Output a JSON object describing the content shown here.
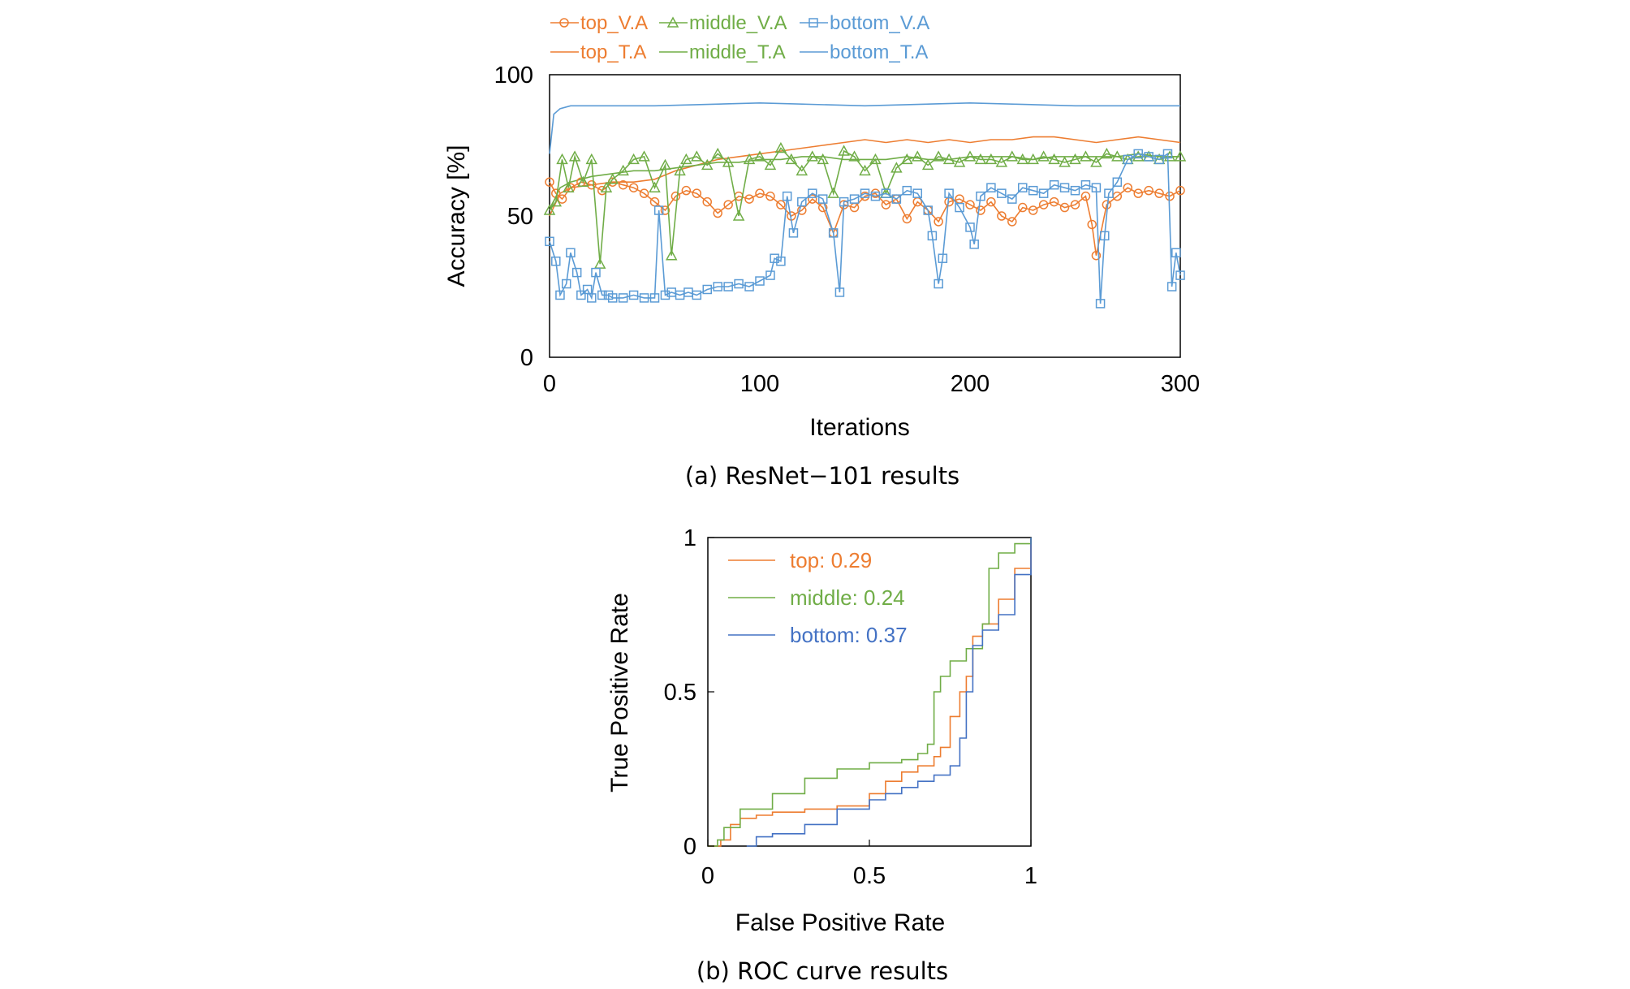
{
  "colors": {
    "top": "#ED7D31",
    "middle": "#70AD47",
    "bottom": "#5B9BD5",
    "bottom_roc": "#4472C4"
  },
  "captions": {
    "a": "(a)  ResNet−101  results",
    "b": "(b)  ROC  curve  results"
  },
  "chart_data": [
    {
      "type": "line",
      "xlabel": "Iterations",
      "ylabel": "Accuracy [%]",
      "xlim": [
        0,
        300
      ],
      "ylim": [
        0,
        100
      ],
      "xticks": [
        "0",
        "100",
        "200",
        "300"
      ],
      "yticks": [
        "0",
        "50",
        "100"
      ],
      "grid": false,
      "legend_position": "top",
      "series": [
        {
          "name": "top_V.A",
          "color": "#ED7D31",
          "marker": "circle",
          "x": [
            0,
            3,
            6,
            10,
            15,
            20,
            25,
            30,
            35,
            40,
            45,
            50,
            55,
            60,
            65,
            70,
            75,
            80,
            85,
            90,
            95,
            100,
            105,
            110,
            115,
            120,
            125,
            130,
            135,
            140,
            145,
            150,
            155,
            160,
            165,
            170,
            175,
            180,
            185,
            190,
            195,
            200,
            205,
            210,
            215,
            220,
            225,
            230,
            235,
            240,
            245,
            250,
            255,
            258,
            260,
            265,
            270,
            275,
            280,
            285,
            290,
            295,
            300
          ],
          "y": [
            62,
            58,
            56,
            60,
            62,
            61,
            59,
            62,
            61,
            60,
            58,
            55,
            52,
            57,
            59,
            58,
            55,
            51,
            54,
            57,
            56,
            58,
            57,
            54,
            50,
            52,
            56,
            53,
            44,
            54,
            53,
            57,
            58,
            54,
            56,
            49,
            55,
            52,
            48,
            55,
            56,
            54,
            52,
            55,
            50,
            48,
            53,
            52,
            54,
            55,
            53,
            54,
            57,
            47,
            36,
            54,
            57,
            60,
            58,
            59,
            58,
            57,
            59
          ]
        },
        {
          "name": "middle_V.A",
          "color": "#70AD47",
          "marker": "triangle",
          "x": [
            0,
            3,
            6,
            9,
            12,
            16,
            20,
            24,
            27,
            30,
            35,
            40,
            45,
            50,
            55,
            58,
            62,
            65,
            70,
            75,
            80,
            85,
            90,
            95,
            100,
            105,
            110,
            115,
            120,
            125,
            130,
            135,
            140,
            145,
            150,
            155,
            160,
            165,
            170,
            175,
            180,
            185,
            190,
            195,
            200,
            205,
            210,
            215,
            220,
            225,
            230,
            235,
            240,
            245,
            250,
            255,
            260,
            265,
            270,
            275,
            280,
            285,
            290,
            295,
            300
          ],
          "y": [
            52,
            55,
            70,
            60,
            71,
            62,
            70,
            33,
            60,
            63,
            66,
            70,
            71,
            60,
            68,
            36,
            66,
            70,
            71,
            68,
            72,
            69,
            50,
            70,
            71,
            68,
            74,
            70,
            66,
            71,
            70,
            58,
            73,
            71,
            66,
            70,
            58,
            67,
            70,
            71,
            68,
            71,
            70,
            69,
            71,
            70,
            70,
            69,
            71,
            70,
            70,
            71,
            70,
            69,
            70,
            71,
            69,
            72,
            71,
            70,
            71,
            71,
            70,
            71,
            71
          ]
        },
        {
          "name": "bottom_V.A",
          "color": "#5B9BD5",
          "marker": "square",
          "x": [
            0,
            3,
            5,
            8,
            10,
            13,
            15,
            18,
            20,
            22,
            25,
            28,
            30,
            35,
            40,
            45,
            50,
            52,
            55,
            58,
            62,
            66,
            70,
            75,
            80,
            85,
            90,
            95,
            100,
            105,
            107,
            110,
            113,
            116,
            120,
            125,
            130,
            135,
            138,
            140,
            145,
            150,
            155,
            160,
            165,
            170,
            175,
            180,
            182,
            185,
            187,
            190,
            195,
            200,
            202,
            205,
            210,
            215,
            220,
            225,
            230,
            235,
            240,
            245,
            250,
            255,
            260,
            262,
            264,
            266,
            270,
            275,
            280,
            285,
            290,
            294,
            296,
            298,
            300
          ],
          "y": [
            41,
            34,
            22,
            26,
            37,
            30,
            22,
            24,
            21,
            30,
            22,
            22,
            21,
            21,
            22,
            21,
            21,
            52,
            22,
            23,
            22,
            23,
            22,
            24,
            25,
            25,
            26,
            25,
            27,
            29,
            35,
            34,
            57,
            44,
            55,
            58,
            56,
            44,
            23,
            55,
            56,
            58,
            57,
            58,
            56,
            59,
            58,
            52,
            43,
            26,
            35,
            58,
            53,
            46,
            40,
            57,
            60,
            58,
            56,
            60,
            59,
            58,
            61,
            60,
            59,
            61,
            60,
            19,
            43,
            58,
            62,
            70,
            72,
            71,
            70,
            72,
            25,
            37,
            29
          ]
        },
        {
          "name": "top_T.A",
          "color": "#ED7D31",
          "marker": "none",
          "x": [
            0,
            5,
            10,
            20,
            30,
            40,
            50,
            60,
            70,
            80,
            90,
            100,
            110,
            120,
            130,
            140,
            150,
            160,
            170,
            180,
            190,
            200,
            210,
            220,
            230,
            240,
            250,
            260,
            270,
            280,
            290,
            300
          ],
          "y": [
            50,
            58,
            60,
            61,
            62,
            62,
            63,
            66,
            68,
            70,
            71,
            72,
            73,
            74,
            75,
            76,
            77,
            76,
            77,
            76,
            77,
            76,
            77,
            77,
            78,
            78,
            77,
            76,
            77,
            78,
            77,
            76
          ]
        },
        {
          "name": "middle_T.A",
          "color": "#70AD47",
          "marker": "none",
          "x": [
            0,
            5,
            10,
            20,
            30,
            40,
            50,
            60,
            70,
            80,
            90,
            100,
            110,
            120,
            130,
            140,
            150,
            160,
            170,
            180,
            190,
            200,
            210,
            220,
            230,
            240,
            250,
            260,
            270,
            280,
            290,
            300
          ],
          "y": [
            52,
            60,
            62,
            64,
            65,
            66,
            66,
            67,
            68,
            69,
            69,
            70,
            70,
            71,
            71,
            70,
            70,
            70,
            71,
            70,
            70,
            71,
            71,
            71,
            70,
            71,
            71,
            71,
            71,
            72,
            71,
            71
          ]
        },
        {
          "name": "bottom_T.A",
          "color": "#5B9BD5",
          "marker": "none",
          "x": [
            0,
            2,
            5,
            10,
            20,
            50,
            100,
            150,
            200,
            250,
            300
          ],
          "y": [
            72,
            86,
            88,
            89,
            89,
            89,
            90,
            89,
            90,
            89,
            89
          ]
        }
      ]
    },
    {
      "type": "line",
      "xlabel": "False Positive Rate",
      "ylabel": "True Positive Rate",
      "xlim": [
        0,
        1
      ],
      "ylim": [
        0,
        1
      ],
      "xticks": [
        "0",
        "0.5",
        "1"
      ],
      "yticks": [
        "0",
        "0.5",
        "1"
      ],
      "grid": false,
      "legend_position": "top-left",
      "series": [
        {
          "name": "top: 0.29",
          "color": "#ED7D31",
          "x": [
            0,
            0.04,
            0.07,
            0.1,
            0.15,
            0.2,
            0.3,
            0.4,
            0.5,
            0.55,
            0.6,
            0.65,
            0.7,
            0.72,
            0.75,
            0.78,
            0.8,
            0.82,
            0.85,
            0.9,
            0.95,
            1
          ],
          "y": [
            0,
            0.02,
            0.07,
            0.09,
            0.1,
            0.11,
            0.12,
            0.13,
            0.17,
            0.21,
            0.24,
            0.26,
            0.29,
            0.32,
            0.42,
            0.5,
            0.55,
            0.68,
            0.72,
            0.8,
            0.9,
            1
          ]
        },
        {
          "name": "middle: 0.24",
          "color": "#70AD47",
          "x": [
            0,
            0.03,
            0.05,
            0.1,
            0.2,
            0.3,
            0.4,
            0.5,
            0.55,
            0.6,
            0.65,
            0.68,
            0.7,
            0.72,
            0.75,
            0.8,
            0.85,
            0.87,
            0.9,
            0.95,
            1
          ],
          "y": [
            0,
            0.02,
            0.06,
            0.12,
            0.17,
            0.22,
            0.25,
            0.27,
            0.27,
            0.28,
            0.3,
            0.33,
            0.5,
            0.55,
            0.6,
            0.64,
            0.72,
            0.9,
            0.95,
            0.98,
            1
          ]
        },
        {
          "name": "bottom: 0.37",
          "color": "#4472C4",
          "x": [
            0.12,
            0.15,
            0.2,
            0.3,
            0.4,
            0.5,
            0.55,
            0.6,
            0.65,
            0.7,
            0.75,
            0.78,
            0.8,
            0.82,
            0.85,
            0.9,
            0.95,
            1
          ],
          "y": [
            0,
            0.03,
            0.04,
            0.07,
            0.12,
            0.15,
            0.17,
            0.19,
            0.21,
            0.23,
            0.26,
            0.35,
            0.5,
            0.65,
            0.7,
            0.75,
            0.88,
            1
          ]
        }
      ]
    }
  ]
}
